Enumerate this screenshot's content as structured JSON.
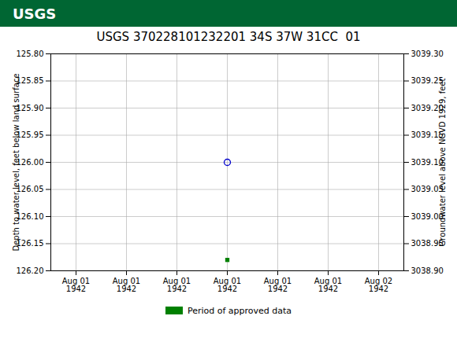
{
  "chart_data": {
    "type": "scatter",
    "title": "USGS 370228101232201 34S 37W 31CC  01",
    "header": {
      "text": "USGS",
      "color": "#006633"
    },
    "y_label": "Depth to water level, feet below land surface",
    "y2_label": "Groundwater level above NGVD 1929, feet",
    "categories": [
      "Aug 01\n1942",
      "Aug 01\n1942",
      "Aug 01\n1942",
      "Aug 01\n1942",
      "Aug 01\n1942",
      "Aug 01\n1942",
      "Aug 02\n1942"
    ],
    "series": [
      {
        "color": "#0000CC",
        "marker": "circle",
        "values": [
          null,
          null,
          null,
          126.0,
          null,
          null,
          null
        ]
      },
      {
        "color": "#008000",
        "marker": "square",
        "values": [
          null,
          null,
          null,
          126.18,
          null,
          null,
          null
        ]
      }
    ],
    "ylim": [
      126.2,
      125.8
    ],
    "yticks": [
      {
        "value": 125.8,
        "label": "125.80"
      },
      125.85,
      {
        "value": 125.9,
        "label": "125.90"
      },
      125.95,
      {
        "value": 126.0,
        "label": "126.00"
      },
      126.05,
      {
        "value": 126.1,
        "label": "126.10"
      },
      126.15,
      {
        "value": 126.2,
        "label": "126.20"
      }
    ],
    "y2lim": [
      3038.9,
      3039.3
    ],
    "y2ticks": [
      {
        "value": 3039.3,
        "label": "3039.30"
      },
      3039.25,
      {
        "value": 3039.2,
        "label": "3039.20"
      },
      3039.15,
      {
        "value": 3039.1,
        "label": "3039.10"
      },
      3039.05,
      {
        "value": 3039.0,
        "label": "3039.00"
      },
      3038.95,
      {
        "value": 3038.9,
        "label": "3038.90"
      }
    ],
    "grid": true,
    "legend": "bottom",
    "annotations": [
      {
        "text": "Period of approved data",
        "color": "#008000"
      }
    ]
  }
}
